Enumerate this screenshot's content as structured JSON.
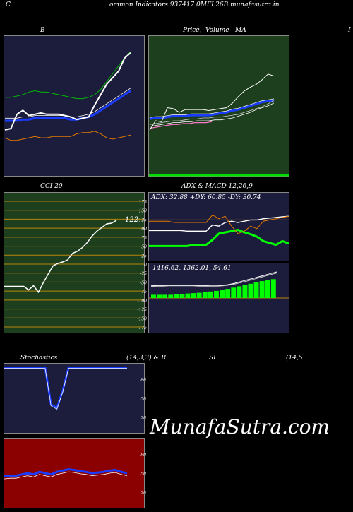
{
  "header": {
    "left_c": "C",
    "title": "ommon  Indicators 937417 0MFL26B munafasutra.in"
  },
  "labels": {
    "bb": "B",
    "price": "Price,",
    "volume_overlap": "Volume",
    "ma": "MA",
    "right_cut": "I",
    "cci": "CCI 20",
    "adx_macd": "ADX  & MACD 12,26,9",
    "stoch": "Stochastics",
    "stoch_params": "(14,3,3) & R",
    "si": "SI",
    "rsi_params": "(14,5",
    "watermark": "MunafaSutra.com"
  },
  "colors": {
    "navy": "#1c1c3c",
    "green_panel": "#1d3f1d",
    "red_panel": "#8b0000",
    "olive_line": "#b8860b",
    "bright_green": "#00ff00",
    "blue": "#1a3cff",
    "orange": "#e07800"
  },
  "chart_data": [
    {
      "id": "bollinger",
      "type": "line",
      "ylim": [
        0,
        100
      ],
      "series": [
        {
          "values": [
            58,
            58,
            59,
            60,
            62,
            63,
            62,
            62,
            61,
            60,
            59,
            58,
            57,
            57,
            58,
            60,
            64,
            70,
            76,
            82,
            88,
            93
          ]
        },
        {
          "values": [
            40,
            40,
            40,
            41,
            41,
            42,
            42,
            42,
            42,
            42,
            42,
            41,
            41,
            42,
            43,
            45,
            48,
            51,
            54,
            57,
            60,
            63
          ]
        },
        {
          "values": [
            27,
            25,
            25,
            26,
            27,
            28,
            27,
            27,
            28,
            28,
            28,
            28,
            30,
            31,
            31,
            32,
            30,
            27,
            26,
            27,
            28,
            29
          ]
        },
        {
          "values": [
            33,
            34,
            45,
            48,
            44,
            45,
            46,
            45,
            45,
            45,
            44,
            43,
            41,
            42,
            43,
            52,
            60,
            68,
            73,
            78,
            88,
            92
          ]
        }
      ]
    },
    {
      "id": "price_volume_ma",
      "type": "line",
      "ylim": [
        0,
        100
      ],
      "series": [
        {
          "values": [
            58,
            59,
            59,
            60,
            61,
            61,
            61,
            62,
            62,
            62,
            62,
            63,
            64,
            65,
            67,
            68,
            70,
            72,
            74,
            76,
            77,
            78
          ]
        },
        {
          "values": [
            50,
            51,
            52,
            53,
            54,
            54,
            55,
            55,
            56,
            56,
            56,
            57,
            57,
            58,
            59,
            61,
            63,
            65,
            68,
            70,
            72,
            75
          ]
        },
        {
          "values": [
            52,
            53,
            54,
            55,
            56,
            56,
            57,
            58,
            58,
            59,
            59,
            60,
            60,
            61,
            62,
            63,
            65,
            67,
            69,
            71,
            74,
            78
          ]
        },
        {
          "values": [
            46,
            56,
            55,
            70,
            69,
            65,
            68,
            68,
            68,
            68,
            67,
            68,
            69,
            70,
            75,
            82,
            88,
            92,
            95,
            100,
            106,
            104
          ]
        }
      ]
    },
    {
      "id": "cci",
      "type": "line",
      "ylim": [
        -175,
        175
      ],
      "ticks": [
        "175",
        "150",
        "125",
        "100",
        "75",
        "50",
        "25",
        "0",
        "-25",
        "-50",
        "-75",
        "-100",
        "-125",
        "-150",
        "-175"
      ],
      "last_label": "122",
      "values": [
        -62,
        -62,
        -62,
        -62,
        -62,
        -72,
        -60,
        -78,
        -52,
        -28,
        -5,
        2,
        6,
        12,
        30,
        36,
        46,
        60,
        78,
        92,
        102,
        112,
        114,
        122
      ]
    },
    {
      "id": "adx",
      "type": "line",
      "ylim": [
        0,
        100
      ],
      "readout": "ADX: 32.88  +DY: 60.85 -DY: 30.74",
      "series": [
        {
          "values": [
            80,
            80,
            80,
            80,
            80,
            80,
            80,
            78,
            78,
            78,
            70,
            60,
            58,
            56,
            54,
            58,
            61,
            65,
            72,
            75,
            78,
            72,
            76
          ]
        },
        {
          "values": [
            55,
            55,
            55,
            55,
            55,
            55,
            56,
            56,
            56,
            56,
            46,
            48,
            42,
            40,
            42,
            40,
            38,
            38,
            36,
            35,
            34,
            33,
            32
          ]
        }
      ]
    },
    {
      "id": "macd",
      "type": "bar",
      "ylim": [
        0,
        100
      ],
      "readout": "1416.62,    1362.01,    54.61",
      "values": [
        10,
        10,
        10,
        10,
        12,
        12,
        14,
        15,
        16,
        18,
        20,
        22,
        24,
        28,
        32,
        36,
        40,
        44,
        48,
        52,
        55,
        58
      ]
    },
    {
      "id": "stochastic",
      "type": "line",
      "ylim": [
        0,
        100
      ],
      "ticks": [
        "80",
        "50",
        "20"
      ],
      "values": [
        98,
        98,
        98,
        98,
        98,
        98,
        98,
        98,
        40,
        35,
        62,
        98,
        98,
        98,
        98,
        98,
        98,
        98,
        98,
        98,
        98,
        98
      ]
    },
    {
      "id": "rsi",
      "type": "line",
      "ylim": [
        0,
        100
      ],
      "ticks": [
        "80",
        "50",
        "20"
      ],
      "values": [
        45,
        46,
        46,
        48,
        50,
        48,
        52,
        50,
        48,
        52,
        54,
        56,
        55,
        53,
        52,
        50,
        51,
        52,
        54,
        55,
        52,
        50
      ]
    }
  ]
}
